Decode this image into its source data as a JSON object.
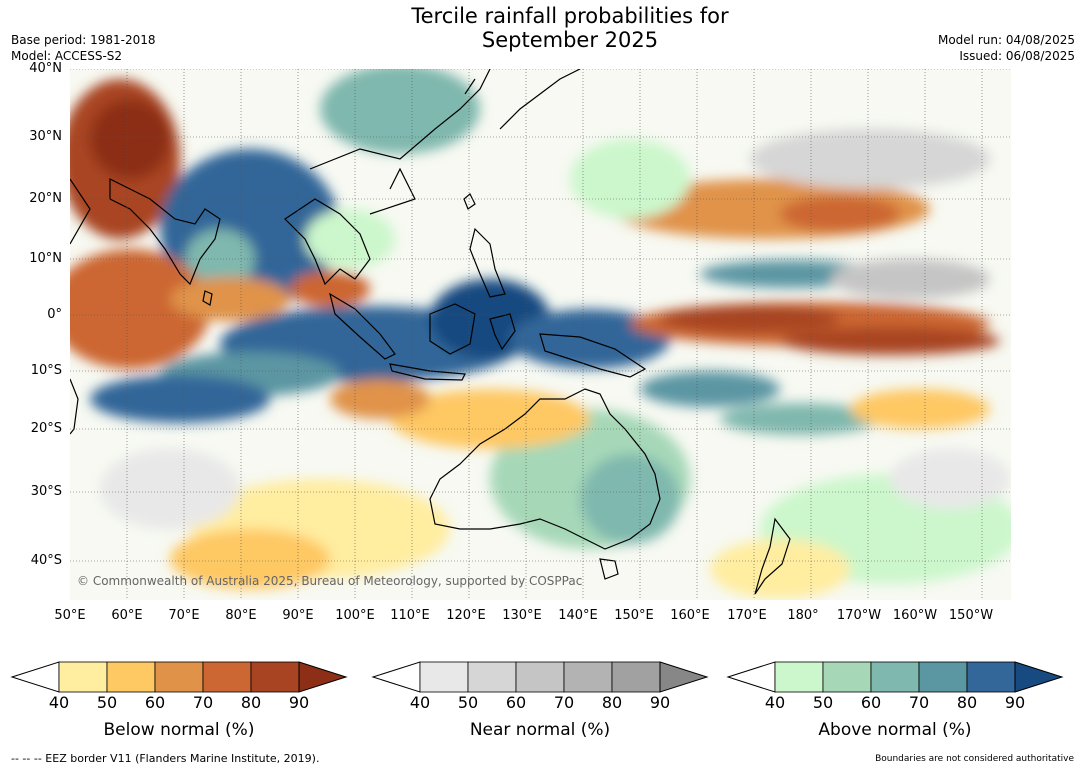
{
  "header": {
    "title_line1": "Tercile rainfall probabilities for",
    "title_line2": "September 2025",
    "base_period": "Base period: 1981-2018",
    "model": "Model: ACCESS-S2",
    "model_run": "Model run: 04/08/2025",
    "issued": "Issued: 06/08/2025"
  },
  "map": {
    "lat_labels": [
      "40°N",
      "30°N",
      "20°N",
      "10°N",
      "0°",
      "10°S",
      "20°S",
      "30°S",
      "40°S"
    ],
    "lon_labels": [
      "50°E",
      "60°E",
      "70°E",
      "80°E",
      "90°E",
      "100°E",
      "110°E",
      "120°E",
      "130°E",
      "140°E",
      "150°E",
      "160°E",
      "170°E",
      "180°",
      "170°W",
      "160°W",
      "150°W"
    ],
    "extent": {
      "lon_min": 50,
      "lon_max": 215,
      "lat_min": -46,
      "lat_max": 40
    },
    "copyright": "© Commonwealth of Australia 2025, Bureau of Meteorology, supported by COSPPac"
  },
  "colorbars": [
    {
      "label": "Below normal (%)",
      "ticks": [
        "40",
        "50",
        "60",
        "70",
        "80",
        "90"
      ],
      "colors": [
        "#ffeda0",
        "#fec863",
        "#e09348",
        "#cc6633",
        "#a94423",
        "#8c2f16"
      ]
    },
    {
      "label": "Near normal (%)",
      "ticks": [
        "40",
        "50",
        "60",
        "70",
        "80",
        "90"
      ],
      "colors": [
        "#e8e8e8",
        "#d6d6d6",
        "#c5c5c5",
        "#b3b3b3",
        "#a1a1a1",
        "#878787"
      ]
    },
    {
      "label": "Above normal (%)",
      "ticks": [
        "40",
        "50",
        "60",
        "70",
        "80",
        "90"
      ],
      "colors": [
        "#ccf7cc",
        "#a6d8b8",
        "#7fb8ae",
        "#5b96a3",
        "#336699",
        "#174a80"
      ]
    }
  ],
  "footer": {
    "eez_note": "--  --  -- EEZ border V11 (Flanders Marine Institute, 2019).",
    "boundaries_note": "Boundaries are not considered authoritative"
  }
}
